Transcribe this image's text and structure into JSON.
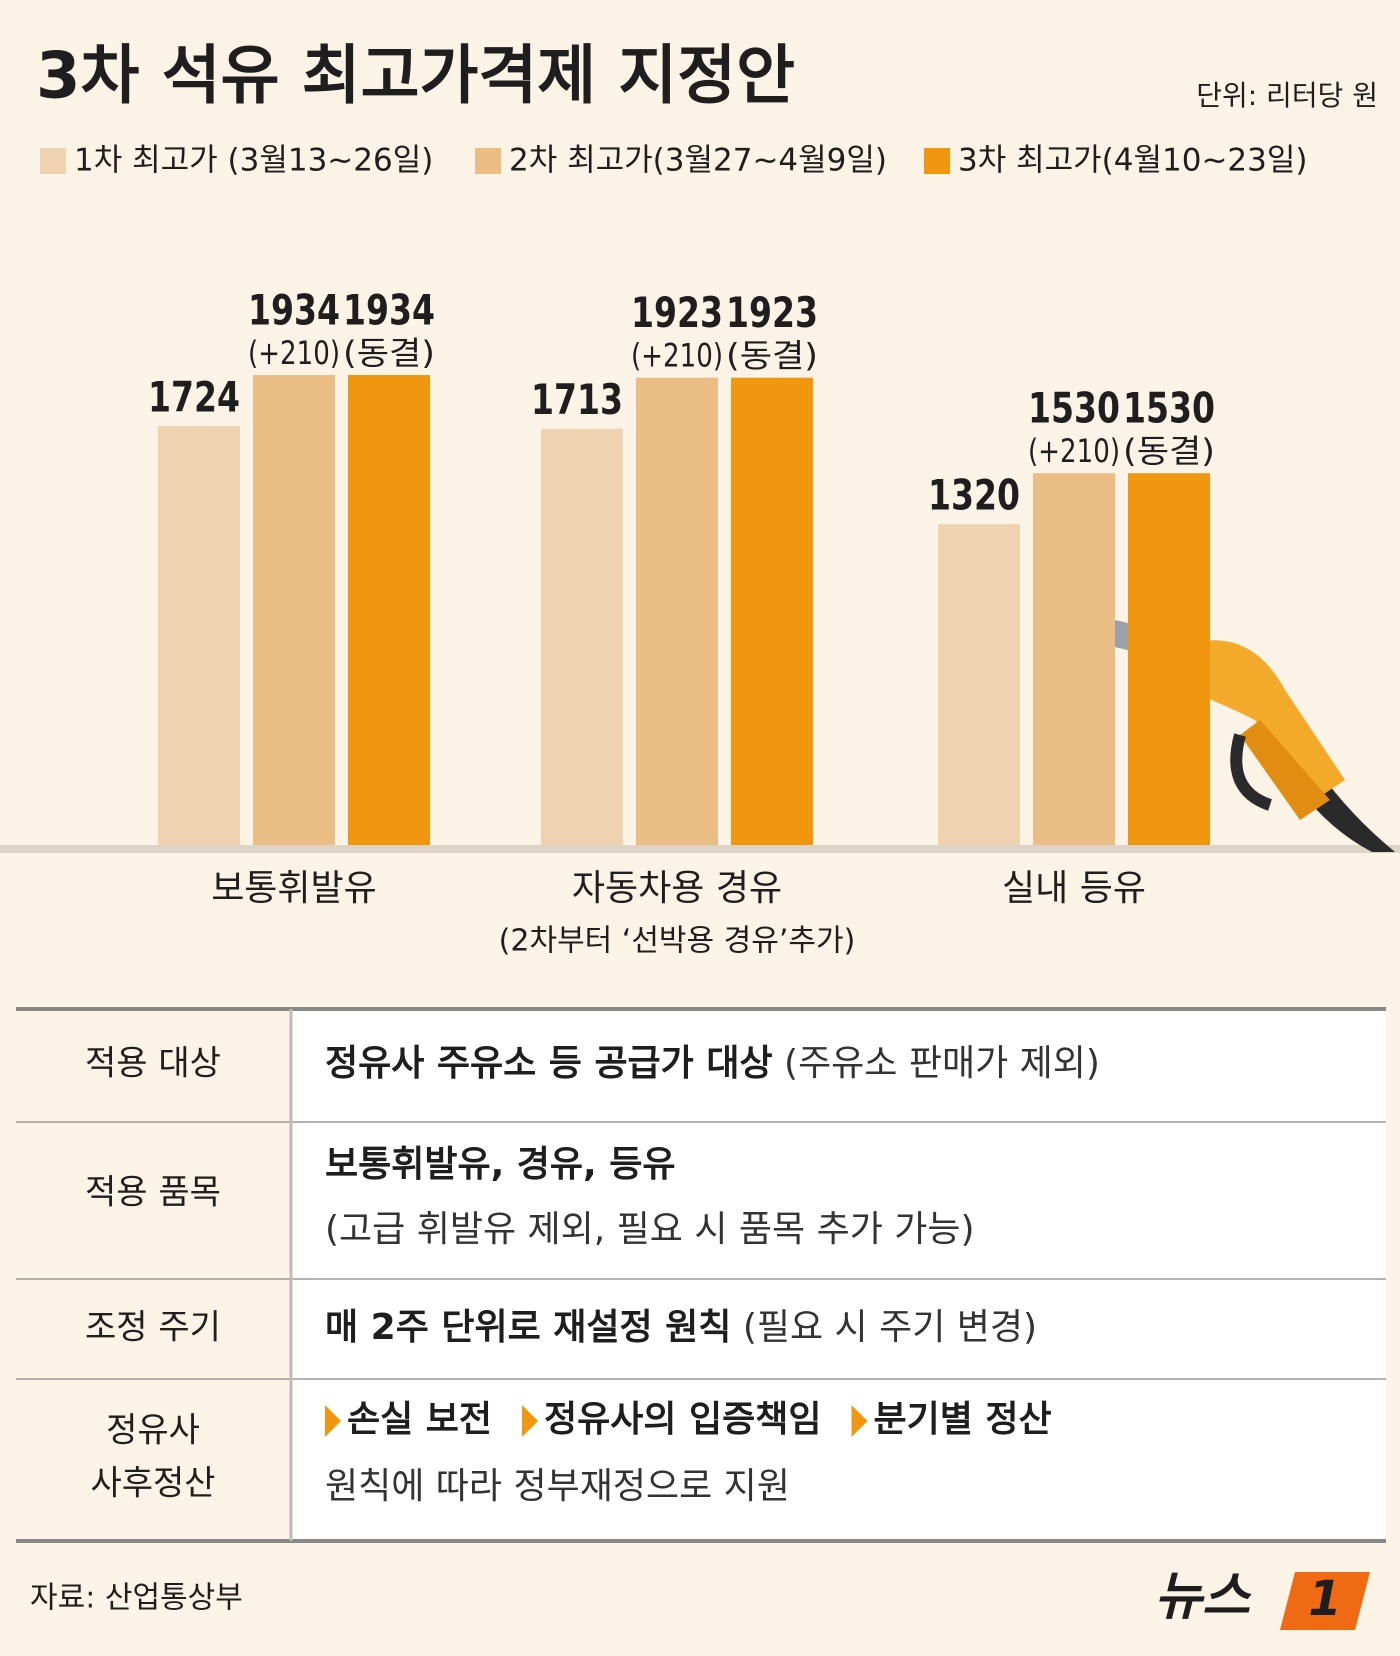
{
  "chart_data": {
    "type": "bar",
    "title": "3차 석유 최고가격제 지정안",
    "unit": "단위: 리터당 원",
    "categories": [
      "보통휘발유",
      "자동차용 경유",
      "실내 등유"
    ],
    "category_notes": [
      null,
      "(2차부터 ‘선박용 경유’추가)",
      null
    ],
    "series": [
      {
        "name": "1차 최고가 (3월13~26일)",
        "color": "#efd3b0",
        "values": [
          1724,
          1713,
          1320
        ]
      },
      {
        "name": "2차 최고가(3월27~4월9일)",
        "color": "#eabd85",
        "values": [
          1934,
          1923,
          1530
        ],
        "annotations": [
          "(+210)",
          "(+210)",
          "(+210)"
        ]
      },
      {
        "name": "3차 최고가(4월10~23일)",
        "color": "#f0960f",
        "values": [
          1934,
          1923,
          1530
        ],
        "annotations": [
          "(동결)",
          "(동결)",
          "(동결)"
        ]
      }
    ]
  },
  "table": {
    "rows": [
      {
        "label": [
          "적용 대상"
        ],
        "lines": [
          {
            "bold": "정유사 주유소 등 공급가 대상",
            "normal": " (주유소 판매가 제외)"
          }
        ]
      },
      {
        "label": [
          "적용 품목"
        ],
        "lines": [
          {
            "bold": "보통휘발유, 경유, 등유"
          },
          {
            "normal": "(고급 휘발유 제외, 필요 시 품목 추가 가능)"
          }
        ]
      },
      {
        "label": [
          "조정 주기"
        ],
        "lines": [
          {
            "bold": "매 2주 단위로 재설정 원칙",
            "normal": " (필요 시 주기 변경)"
          }
        ]
      },
      {
        "label": [
          "정유사",
          "사후정산"
        ],
        "items": [
          "손실 보전",
          "정유사의 입증책임",
          "분기별 정산"
        ],
        "lines": [
          {
            "normal": "원칙에 따라 정부재정으로 지원"
          }
        ]
      }
    ]
  },
  "footer": {
    "source": "자료: 산업통상부",
    "logo": "뉴스",
    "logo_mark": "1"
  }
}
